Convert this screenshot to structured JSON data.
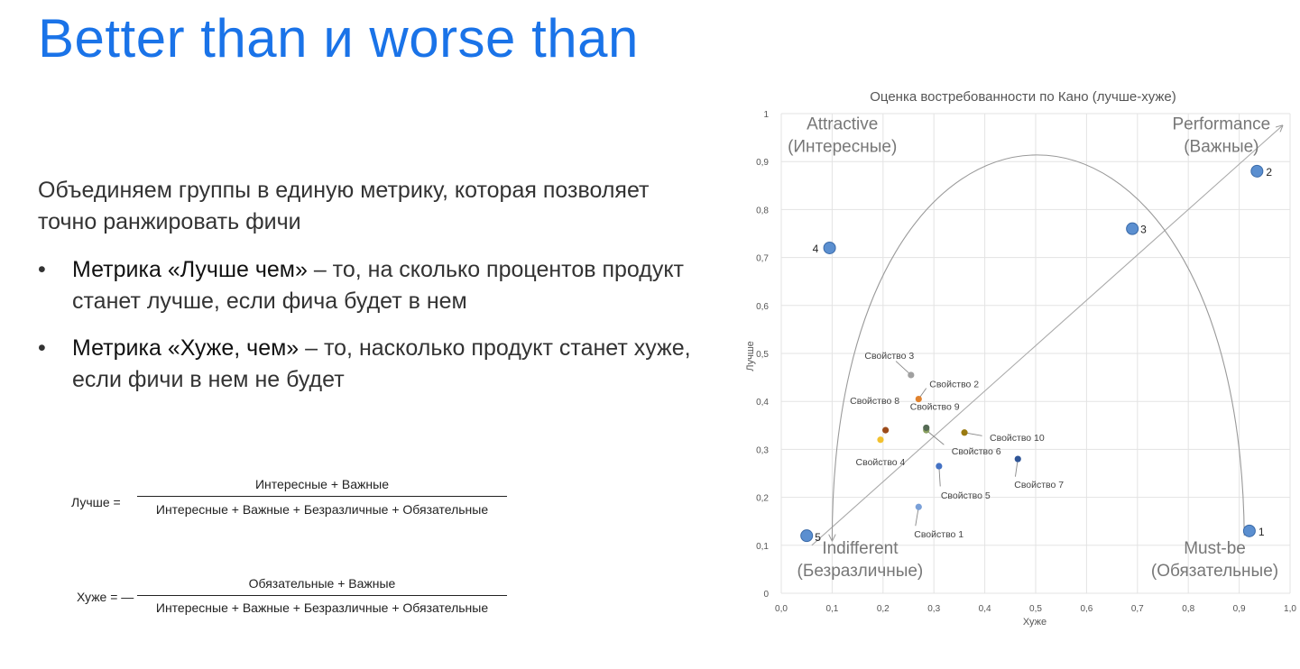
{
  "slide": {
    "title": "Better than и worse than",
    "intro": "Объединяем группы в единую метрику, которая позволяет точно ранжировать фичи",
    "bullet_marker": "•",
    "bullets": [
      {
        "bold": "Метрика «Лучше чем»",
        "rest": " – то, на сколько процентов продукт станет лучше, если фича будет в нем"
      },
      {
        "bold": "Метрика «Хуже, чем»",
        "rest": " – то, насколько продукт станет хуже, если фичи в нем не будет"
      }
    ]
  },
  "formulas": {
    "better": {
      "label": "Лучше =",
      "numerator": "Интересные + Важные",
      "denominator": "Интересные + Важные + Безразличные + Обязательные"
    },
    "worse": {
      "label": "Хуже = —",
      "numerator": "Обязательные + Важные",
      "denominator": "Интересные + Важные + Безразличные + Обязательные"
    }
  },
  "chart_data": {
    "type": "scatter",
    "title": "Оценка востребованности по Кано (лучше-хуже)",
    "xlabel": "Хуже",
    "ylabel": "Лучше",
    "xlim": [
      0,
      1
    ],
    "ylim": [
      0,
      1
    ],
    "x_ticks": [
      "0,0",
      "0,1",
      "0,2",
      "0,3",
      "0,4",
      "0,5",
      "0,6",
      "0,7",
      "0,8",
      "0,9",
      "1,0"
    ],
    "y_ticks": [
      "0",
      "0,1",
      "0,2",
      "0,3",
      "0,4",
      "0,5",
      "0,6",
      "0,7",
      "0,8",
      "0,9",
      "1"
    ],
    "grid": true,
    "quadrants": [
      {
        "name": "Attractive",
        "sub": "(Интересные)"
      },
      {
        "name": "Performance",
        "sub": "(Важные)"
      },
      {
        "name": "Indifferent",
        "sub": "(Безразличные)"
      },
      {
        "name": "Must-be",
        "sub": "(Обязательные)"
      }
    ],
    "reference_points": [
      {
        "label": "1",
        "x": 0.92,
        "y": 0.13
      },
      {
        "label": "2",
        "x": 0.935,
        "y": 0.88
      },
      {
        "label": "3",
        "x": 0.69,
        "y": 0.76
      },
      {
        "label": "4",
        "x": 0.095,
        "y": 0.72
      },
      {
        "label": "5",
        "x": 0.05,
        "y": 0.12
      }
    ],
    "points": [
      {
        "label": "Свойство 1",
        "x": 0.27,
        "y": 0.18,
        "color": "#7aa0d8"
      },
      {
        "label": "Свойство 2",
        "x": 0.27,
        "y": 0.405,
        "color": "#e0822e"
      },
      {
        "label": "Свойство 3",
        "x": 0.255,
        "y": 0.455,
        "color": "#a0a0a0"
      },
      {
        "label": "Свойство 4",
        "x": 0.195,
        "y": 0.32,
        "color": "#f2c12e"
      },
      {
        "label": "Свойство 5",
        "x": 0.31,
        "y": 0.265,
        "color": "#4472c4"
      },
      {
        "label": "Свойство 6",
        "x": 0.285,
        "y": 0.34,
        "color": "#8aa060"
      },
      {
        "label": "Свойство 7",
        "x": 0.465,
        "y": 0.28,
        "color": "#2f5597"
      },
      {
        "label": "Свойство 8",
        "x": 0.205,
        "y": 0.34,
        "color": "#9c4a1a"
      },
      {
        "label": "Свойство 9",
        "x": 0.285,
        "y": 0.345,
        "color": "#556b55"
      },
      {
        "label": "Свойство 10",
        "x": 0.36,
        "y": 0.335,
        "color": "#9a7a10"
      }
    ],
    "colors": {
      "reference": "#5b8fd0",
      "grid": "#e3e3e3",
      "axis_text": "#555555",
      "quadrant_text": "#777777"
    }
  }
}
